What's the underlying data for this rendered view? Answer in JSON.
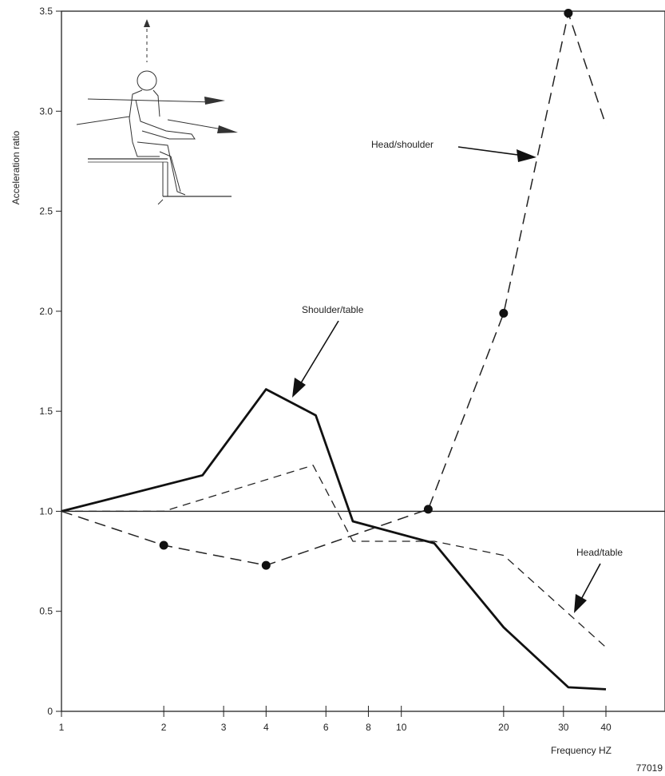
{
  "chart_data": {
    "type": "line",
    "xlabel": "Frequency HZ",
    "ylabel": "Acceleration ratio",
    "x_scale": "log",
    "xlim": [
      1,
      40
    ],
    "ylim": [
      0,
      3.5
    ],
    "x_ticks": [
      1,
      2,
      3,
      4,
      6,
      8,
      10,
      20,
      30,
      40
    ],
    "x_tick_labels": [
      "1",
      "2",
      "3",
      "4",
      "6",
      "8",
      "10",
      "20",
      "30",
      "40"
    ],
    "y_ticks": [
      0,
      0.5,
      1.0,
      1.5,
      2.0,
      2.5,
      3.0,
      3.5
    ],
    "y_tick_labels": [
      "0",
      "0.5",
      "1.0",
      "1.5",
      "2.0",
      "2.5",
      "3.0",
      "3.5"
    ],
    "reference_line": {
      "y": 1.0
    },
    "series": [
      {
        "name": "Shoulder/table",
        "style": "solid-bold",
        "points": [
          [
            1,
            1.0
          ],
          [
            2.6,
            1.18
          ],
          [
            4,
            1.61
          ],
          [
            5.6,
            1.48
          ],
          [
            7.2,
            0.95
          ],
          [
            12.5,
            0.84
          ],
          [
            20,
            0.42
          ],
          [
            31,
            0.12
          ],
          [
            40,
            0.11
          ]
        ]
      },
      {
        "name": "Head/table",
        "style": "dashed-thin",
        "points": [
          [
            1,
            1.0
          ],
          [
            2,
            1.0
          ],
          [
            5.5,
            1.23
          ],
          [
            7.2,
            0.85
          ],
          [
            12.5,
            0.85
          ],
          [
            20,
            0.78
          ],
          [
            40,
            0.32
          ]
        ]
      },
      {
        "name": "Head/shoulder",
        "style": "dashed-markers",
        "points": [
          [
            1,
            1.0
          ],
          [
            2,
            0.83
          ],
          [
            4,
            0.73
          ],
          [
            12,
            1.01
          ],
          [
            20,
            1.99
          ],
          [
            31,
            3.49
          ],
          [
            40,
            2.93
          ]
        ],
        "marker_x": [
          2,
          4,
          12,
          20,
          31
        ]
      }
    ],
    "annotations": [
      {
        "text": "Head/shoulder",
        "series": "Head/shoulder"
      },
      {
        "text": "Shoulder/table",
        "series": "Shoulder/table"
      },
      {
        "text": "Head/table",
        "series": "Head/table"
      }
    ],
    "inset": "seated-person-vibration-diagram",
    "grid": false
  },
  "footnote": "77019"
}
